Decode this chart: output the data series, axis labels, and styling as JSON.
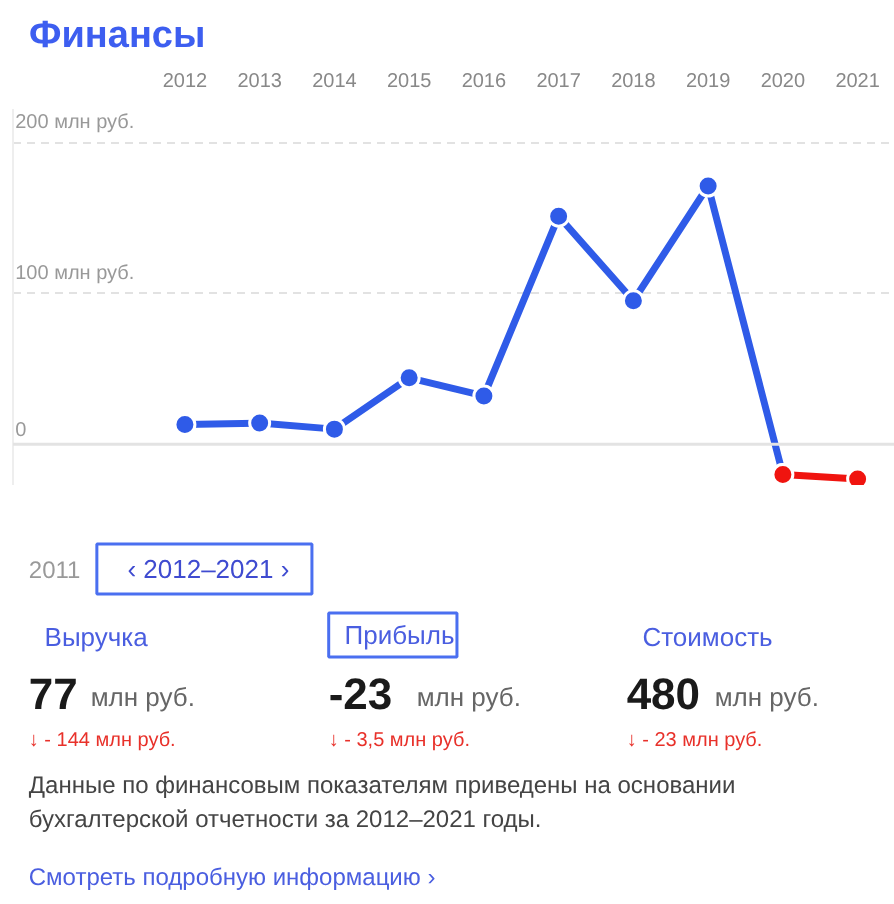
{
  "chart_data": {
    "type": "line",
    "title": "Финансы",
    "series": [
      {
        "color": "#2f5be8",
        "colors": [
          "#2f5be8",
          "#2f5be8",
          "#2f5be8",
          "#2f5be8",
          "#2f5be8",
          "#2f5be8",
          "#2f5be8",
          "#2f5be8",
          "#f0140f"
        ],
        "x": [
          2012,
          2013,
          2014,
          2015,
          2016,
          2017,
          2018,
          2019,
          2020
        ],
        "values": [
          13,
          14,
          10,
          44,
          32,
          151,
          95,
          171,
          -20
        ]
      },
      {
        "color": "#f0140f",
        "x": [
          2020,
          2021
        ],
        "values": [
          -20,
          -23
        ]
      }
    ],
    "xlim": [
      2009.7,
      2021.5
    ],
    "ylim": [
      -27,
      222
    ],
    "xticks": [
      2012,
      2013,
      2014,
      2015,
      2016,
      2017,
      2018,
      2019,
      2020,
      2021
    ],
    "yticks": [
      {
        "value": 0,
        "label": "0"
      },
      {
        "value": 100,
        "label": "100 млн руб."
      },
      {
        "value": 200,
        "label": "200 млн руб."
      }
    ],
    "grid": "y",
    "marker": "circle",
    "line_style": "solid",
    "ref_lines": [
      {
        "axis": "y",
        "value": 0,
        "color": "#e3e3e3",
        "line_style": "solid"
      }
    ],
    "annotations": [
      "2011",
      "‹   2012–2021   ›",
      "Выручка",
      "Прибыль",
      "Стоимость",
      "77",
      "млн руб.",
      "-23",
      "млн руб.",
      "480",
      "млн руб.",
      "↓ - 144 млн руб.",
      "↓ - 3,5 млн руб.",
      "↓ - 23 млн руб.",
      "Данные по финансовым показателям приведены на основании бухгалтерской отчетности за 2012–2021 годы.",
      "Смотреть подробную информацию ›"
    ]
  }
}
